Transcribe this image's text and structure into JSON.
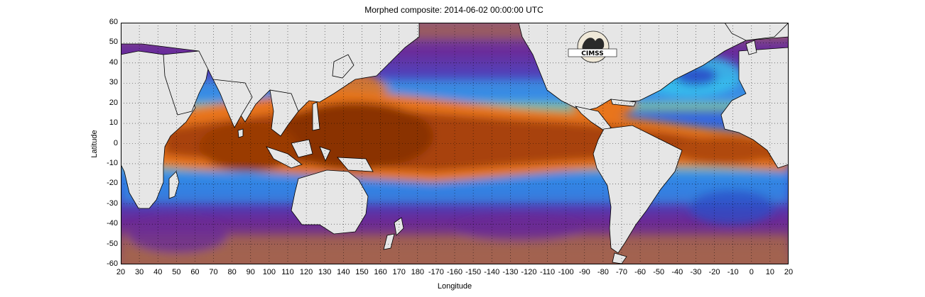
{
  "title": "Morphed composite: 2014-06-02 00:00:00 UTC",
  "xlabel": "Longitude",
  "ylabel": "Latitude",
  "y_ticks": [
    "60",
    "50",
    "40",
    "30",
    "20",
    "10",
    "0",
    "-10",
    "-20",
    "-30",
    "-40",
    "-50",
    "-60"
  ],
  "x_ticks": [
    "20",
    "30",
    "40",
    "50",
    "60",
    "70",
    "80",
    "90",
    "100",
    "110",
    "120",
    "130",
    "140",
    "150",
    "160",
    "170",
    "180",
    "-170",
    "-160",
    "-150",
    "-140",
    "-130",
    "-120",
    "-110",
    "-100",
    "-90",
    "-80",
    "-70",
    "-60",
    "-50",
    "-40",
    "-30",
    "-20",
    "-10",
    "0",
    "10",
    "20"
  ],
  "logo": {
    "text": "CIMSS"
  },
  "colors": {
    "land": "#e6e6e6",
    "dry": "#a0502a",
    "purple": "#6a1f9a",
    "blue": "#1e6fe0",
    "cyan": "#3fd8f0",
    "green": "#8ee07a",
    "moist": "#e86a10",
    "wet": "#8a3000"
  },
  "map_extent": {
    "lon_min": 20,
    "lon_span": 360,
    "lat_min": -60,
    "lat_max": 60
  }
}
